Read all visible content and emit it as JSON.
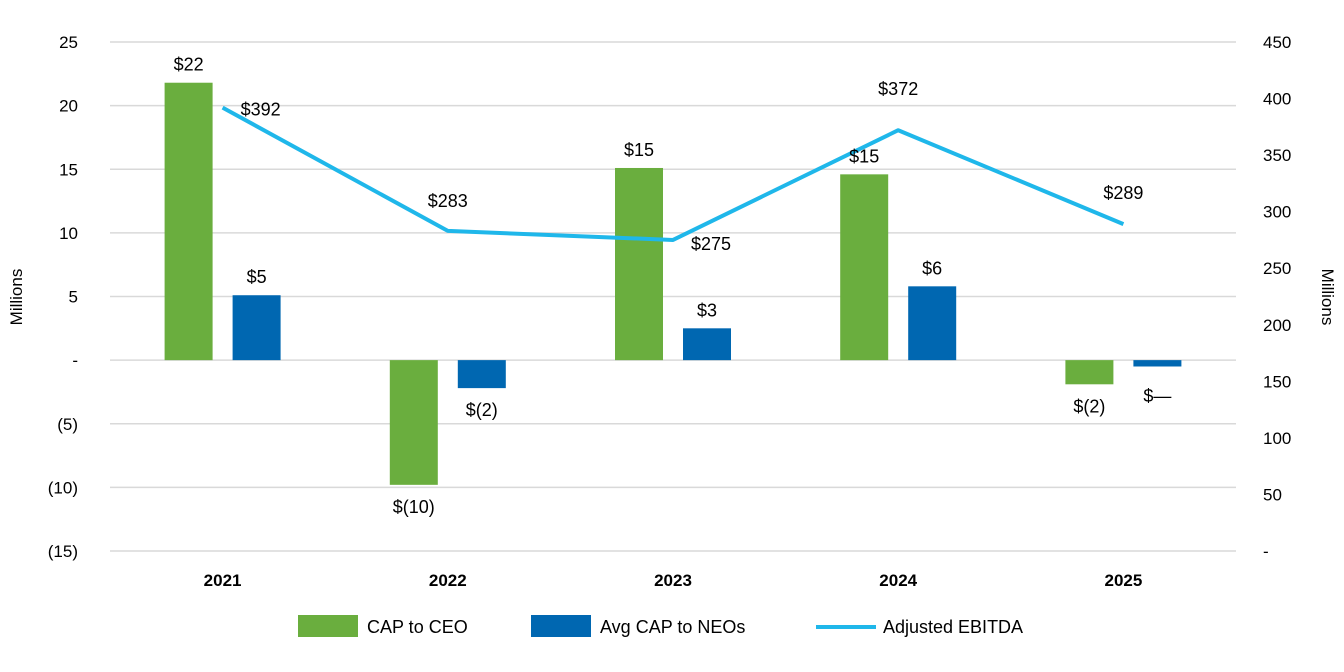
{
  "chart_data": {
    "type": "bar",
    "categories": [
      "2021",
      "2022",
      "2023",
      "2024",
      "2025"
    ],
    "left_axis": {
      "label": "Millions",
      "range": [
        -15,
        25
      ],
      "ticks": [
        25,
        20,
        15,
        10,
        5,
        0,
        -5,
        -10,
        -15
      ],
      "tick_labels": [
        "25",
        "20",
        "15",
        "10",
        "5",
        "-",
        "(5)",
        "(10)",
        "(15)"
      ]
    },
    "right_axis": {
      "label": "Millions",
      "range": [
        0,
        450
      ],
      "ticks": [
        450,
        400,
        350,
        300,
        250,
        200,
        150,
        100,
        50,
        0
      ],
      "tick_labels": [
        "450",
        "400",
        "350",
        "300",
        "250",
        "200",
        "150",
        "100",
        "50",
        "-"
      ]
    },
    "grid": true,
    "legend_position": "bottom",
    "series": [
      {
        "name": "CAP to CEO",
        "type": "bar",
        "axis": "left",
        "color": "#6aae3e",
        "values": [
          21.8,
          -9.8,
          15.1,
          14.6,
          -1.9
        ],
        "labels": [
          "$22",
          "$(10)",
          "$15",
          "$15",
          "$(2)"
        ]
      },
      {
        "name": "Avg CAP to NEOs",
        "type": "bar",
        "axis": "left",
        "color": "#0067b1",
        "values": [
          5.1,
          -2.2,
          2.5,
          5.8,
          -0.5
        ],
        "labels": [
          "$5",
          "$(2)",
          "$3",
          "$6",
          "$—"
        ]
      },
      {
        "name": "Adjusted EBITDA",
        "type": "line",
        "axis": "right",
        "color": "#1fb7ea",
        "values": [
          392,
          283,
          275,
          372,
          289
        ],
        "labels": [
          "$392",
          "$283",
          "$275",
          "$372",
          "$289"
        ]
      }
    ]
  }
}
